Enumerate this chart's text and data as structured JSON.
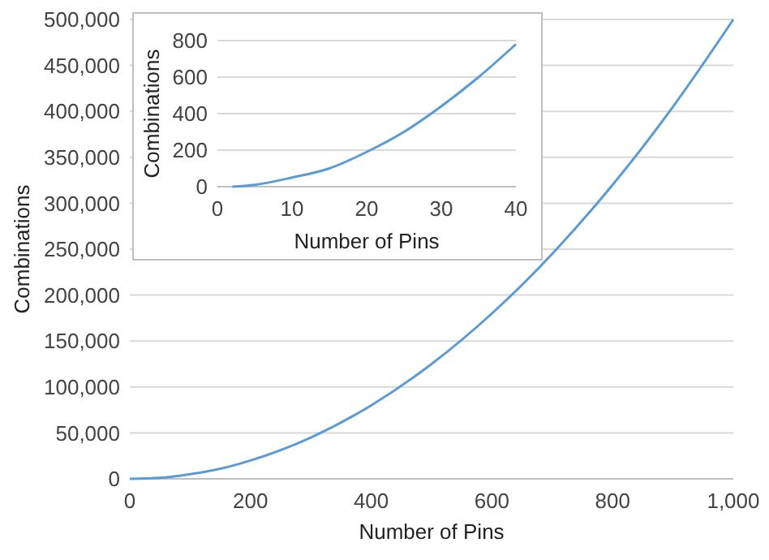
{
  "chart_data": [
    {
      "type": "line",
      "xlabel": "Number of Pins",
      "ylabel": "Combinations",
      "x": [
        0,
        50,
        100,
        150,
        200,
        300,
        400,
        500,
        600,
        700,
        800,
        900,
        1000
      ],
      "series": [
        {
          "color": "#5b9bd5",
          "values": [
            0,
            1000,
            5000,
            11000,
            20000,
            45000,
            80000,
            125000,
            180000,
            245000,
            320000,
            405000,
            500000
          ]
        }
      ],
      "xlim": [
        0,
        1000
      ],
      "xticks": [
        0,
        200,
        400,
        600,
        800,
        {
          "value": 1000,
          "label": "1,000"
        }
      ],
      "ylim": [
        0,
        500000
      ],
      "yticks": [
        0,
        {
          "value": 50000,
          "label": "50,000"
        },
        {
          "value": 100000,
          "label": "100,000"
        },
        {
          "value": 150000,
          "label": "150,000"
        },
        {
          "value": 200000,
          "label": "200,000"
        },
        {
          "value": 250000,
          "label": "250,000"
        },
        {
          "value": 300000,
          "label": "300,000"
        },
        {
          "value": 350000,
          "label": "350,000"
        },
        {
          "value": 400000,
          "label": "400,000"
        },
        {
          "value": 450000,
          "label": "450,000"
        },
        {
          "value": 500000,
          "label": "500,000"
        }
      ],
      "grid": "y",
      "marker": "none"
    },
    {
      "type": "line",
      "xlabel": "Number of Pins",
      "ylabel": "Combinations",
      "x": [
        2,
        5,
        10,
        15,
        20,
        25,
        30,
        35,
        40
      ],
      "series": [
        {
          "color": "#5b9bd5",
          "values": [
            0,
            10,
            50,
            100,
            190,
            300,
            440,
            600,
            780
          ]
        }
      ],
      "xlim": [
        0,
        40
      ],
      "xticks": [
        0,
        10,
        20,
        30,
        40
      ],
      "ylim": [
        0,
        800
      ],
      "yticks": [
        0,
        200,
        400,
        600,
        800
      ],
      "grid": "y",
      "marker": "none"
    }
  ]
}
